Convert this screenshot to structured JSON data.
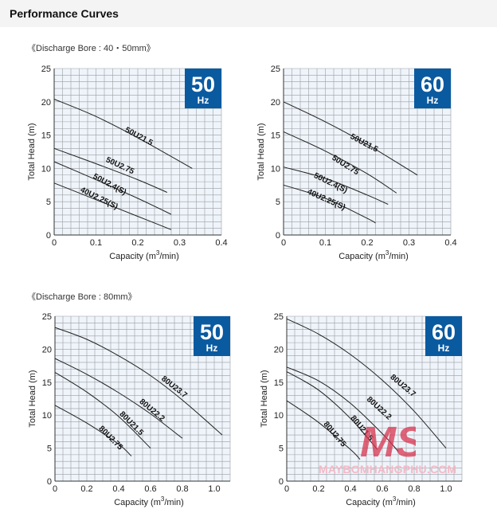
{
  "page": {
    "title": "Performance Curves"
  },
  "sections": [
    {
      "label": "《Discharge Bore : 40・50mm》"
    },
    {
      "label": "《Discharge Bore : 80mm》"
    }
  ],
  "watermark": {
    "logo_text": "MS",
    "site": "MAYBOMHANGPHU.COM",
    "color": "#f3b9c6",
    "logo_color": "#d8344f"
  },
  "colors": {
    "grid": "#9a9ea3",
    "plot_bg": "#eef4fa",
    "badge": "#0a5aa0",
    "curve": "#222222"
  },
  "chart_data": [
    {
      "type": "line",
      "title": "50Hz",
      "badge_big": "50",
      "badge_unit": "Hz",
      "xlabel": "Capacity (m",
      "xlabel_sup": "3",
      "xlabel_tail": "/min)",
      "ylabel": "Total Head (m)",
      "xlim": [
        0,
        0.4
      ],
      "ylim": [
        0,
        25
      ],
      "xticks": [
        0,
        0.1,
        0.2,
        0.3,
        0.4
      ],
      "xtick_labels": [
        "0",
        "0.1",
        "0.2",
        "0.3",
        "0.4"
      ],
      "yticks": [
        0,
        5,
        10,
        15,
        20,
        25
      ],
      "ytick_labels": [
        "0",
        "5",
        "10",
        "15",
        "20",
        "25"
      ],
      "grid_x_step": 0.02,
      "grid_y_step": 1,
      "series": [
        {
          "name": "50U21.5",
          "x": [
            0,
            0.1,
            0.2,
            0.33
          ],
          "y": [
            20.4,
            17.8,
            14.6,
            10
          ]
        },
        {
          "name": "50U2.75",
          "x": [
            0,
            0.1,
            0.2,
            0.27
          ],
          "y": [
            13,
            10.7,
            8.3,
            6.4
          ]
        },
        {
          "name": "50U2.4(S)",
          "x": [
            0,
            0.1,
            0.2,
            0.28
          ],
          "y": [
            11,
            8.3,
            5.5,
            3.1
          ]
        },
        {
          "name": "40U2.25(S)",
          "x": [
            0,
            0.1,
            0.2,
            0.28
          ],
          "y": [
            7.8,
            5.3,
            2.8,
            0.8
          ]
        }
      ],
      "labels": [
        {
          "text": "50U21.5",
          "x": 0.2,
          "y": 14.5,
          "rot": 28
        },
        {
          "text": "50U2.75",
          "x": 0.155,
          "y": 10.1,
          "rot": 25
        },
        {
          "text": "50U2.4(S)",
          "x": 0.13,
          "y": 7.3,
          "rot": 28
        },
        {
          "text": "40U2.25(S)",
          "x": 0.105,
          "y": 5.2,
          "rot": 26
        }
      ]
    },
    {
      "type": "line",
      "title": "60Hz",
      "badge_big": "60",
      "badge_unit": "Hz",
      "xlabel": "Capacity (m",
      "xlabel_sup": "3",
      "xlabel_tail": "/min)",
      "ylabel": "Total Head (m)",
      "xlim": [
        0,
        0.4
      ],
      "ylim": [
        0,
        25
      ],
      "xticks": [
        0,
        0.1,
        0.2,
        0.3,
        0.4
      ],
      "xtick_labels": [
        "0",
        "0.1",
        "0.2",
        "0.3",
        "0.4"
      ],
      "yticks": [
        0,
        5,
        10,
        15,
        20,
        25
      ],
      "ytick_labels": [
        "0",
        "5",
        "10",
        "15",
        "20",
        "25"
      ],
      "grid_x_step": 0.02,
      "grid_y_step": 1,
      "series": [
        {
          "name": "50U21.5",
          "x": [
            0,
            0.1,
            0.2,
            0.32
          ],
          "y": [
            20,
            17,
            13.6,
            9
          ]
        },
        {
          "name": "50U2.75",
          "x": [
            0,
            0.1,
            0.2,
            0.27
          ],
          "y": [
            15.5,
            12.6,
            9.2,
            6.3
          ]
        },
        {
          "name": "50U2.4(S)",
          "x": [
            0,
            0.1,
            0.2,
            0.25
          ],
          "y": [
            10.2,
            8.5,
            6,
            4.6
          ]
        },
        {
          "name": "40U2.25(S)",
          "x": [
            0,
            0.1,
            0.2,
            0.22
          ],
          "y": [
            7.5,
            5.5,
            2.5,
            1.8
          ]
        }
      ],
      "labels": [
        {
          "text": "50U21.5",
          "x": 0.19,
          "y": 13.5,
          "rot": 28
        },
        {
          "text": "50U2.75",
          "x": 0.145,
          "y": 10.2,
          "rot": 32
        },
        {
          "text": "50U2.4(S)",
          "x": 0.11,
          "y": 7.5,
          "rot": 26
        },
        {
          "text": "40U2.25(S)",
          "x": 0.1,
          "y": 5.0,
          "rot": 24
        }
      ]
    },
    {
      "type": "line",
      "title": "50Hz",
      "badge_big": "50",
      "badge_unit": "Hz",
      "xlabel": "Capacity (m",
      "xlabel_sup": "3",
      "xlabel_tail": "/min)",
      "ylabel": "Total Head (m)",
      "xlim": [
        0,
        1.1
      ],
      "ylim": [
        0,
        25
      ],
      "xticks": [
        0,
        0.2,
        0.4,
        0.6,
        0.8,
        1.0
      ],
      "xtick_labels": [
        "0",
        "0.2",
        "0.4",
        "0.6",
        "0.8",
        "1.0"
      ],
      "yticks": [
        0,
        5,
        10,
        15,
        20,
        25
      ],
      "ytick_labels": [
        "0",
        "5",
        "10",
        "15",
        "20",
        "25"
      ],
      "grid_x_step": 0.05,
      "grid_y_step": 1,
      "series": [
        {
          "name": "80U23.7",
          "x": [
            0,
            0.2,
            0.4,
            0.6,
            0.8,
            1.05
          ],
          "y": [
            23.3,
            21.5,
            19,
            16,
            12.3,
            7
          ]
        },
        {
          "name": "80U22.2",
          "x": [
            0,
            0.2,
            0.4,
            0.6,
            0.8
          ],
          "y": [
            18.6,
            16.2,
            13.4,
            10.2,
            6.5
          ]
        },
        {
          "name": "80U21.5",
          "x": [
            0,
            0.2,
            0.4,
            0.6
          ],
          "y": [
            16.5,
            13.5,
            9.8,
            5
          ]
        },
        {
          "name": "80U2.75",
          "x": [
            0,
            0.2,
            0.4,
            0.48
          ],
          "y": [
            11.5,
            8.8,
            5.6,
            3.8
          ]
        }
      ],
      "labels": [
        {
          "text": "80U23.7",
          "x": 0.74,
          "y": 14.0,
          "rot": 38
        },
        {
          "text": "80U22.2",
          "x": 0.6,
          "y": 10.5,
          "rot": 40
        },
        {
          "text": "80U21.5",
          "x": 0.47,
          "y": 8.5,
          "rot": 45
        },
        {
          "text": "80U2.75",
          "x": 0.34,
          "y": 6.3,
          "rot": 45
        }
      ]
    },
    {
      "type": "line",
      "title": "60Hz",
      "badge_big": "60",
      "badge_unit": "Hz",
      "xlabel": "Capacity (m",
      "xlabel_sup": "3",
      "xlabel_tail": "/min)",
      "ylabel": "Total Head (m)",
      "xlim": [
        0,
        1.1
      ],
      "ylim": [
        0,
        25
      ],
      "xticks": [
        0,
        0.2,
        0.4,
        0.6,
        0.8,
        1.0
      ],
      "xtick_labels": [
        "0",
        "0.2",
        "0.4",
        "0.6",
        "0.8",
        "1.0"
      ],
      "yticks": [
        0,
        5,
        10,
        15,
        20,
        25
      ],
      "ytick_labels": [
        "0",
        "5",
        "10",
        "15",
        "20",
        "25"
      ],
      "grid_x_step": 0.05,
      "grid_y_step": 1,
      "series": [
        {
          "name": "80U23.7",
          "x": [
            0,
            0.2,
            0.4,
            0.6,
            0.8,
            1.0
          ],
          "y": [
            24.6,
            22.3,
            19.2,
            15.3,
            10.6,
            5
          ]
        },
        {
          "name": "80U22.2",
          "x": [
            0,
            0.2,
            0.4,
            0.6,
            0.7
          ],
          "y": [
            17.3,
            15.2,
            11.8,
            7.2,
            4.5
          ]
        },
        {
          "name": "80U21.5",
          "x": [
            0,
            0.2,
            0.4,
            0.57
          ],
          "y": [
            16.6,
            13.8,
            9.5,
            4.8
          ]
        },
        {
          "name": "80U2.75",
          "x": [
            0,
            0.2,
            0.4,
            0.46
          ],
          "y": [
            12.2,
            8.9,
            4.8,
            3.3
          ]
        }
      ],
      "labels": [
        {
          "text": "80U23.7",
          "x": 0.72,
          "y": 14.2,
          "rot": 40
        },
        {
          "text": "80U22.2",
          "x": 0.57,
          "y": 10.8,
          "rot": 42
        },
        {
          "text": "80U21.5",
          "x": 0.46,
          "y": 7.8,
          "rot": 50
        },
        {
          "text": "80U2.75",
          "x": 0.29,
          "y": 6.9,
          "rot": 50
        }
      ]
    }
  ]
}
